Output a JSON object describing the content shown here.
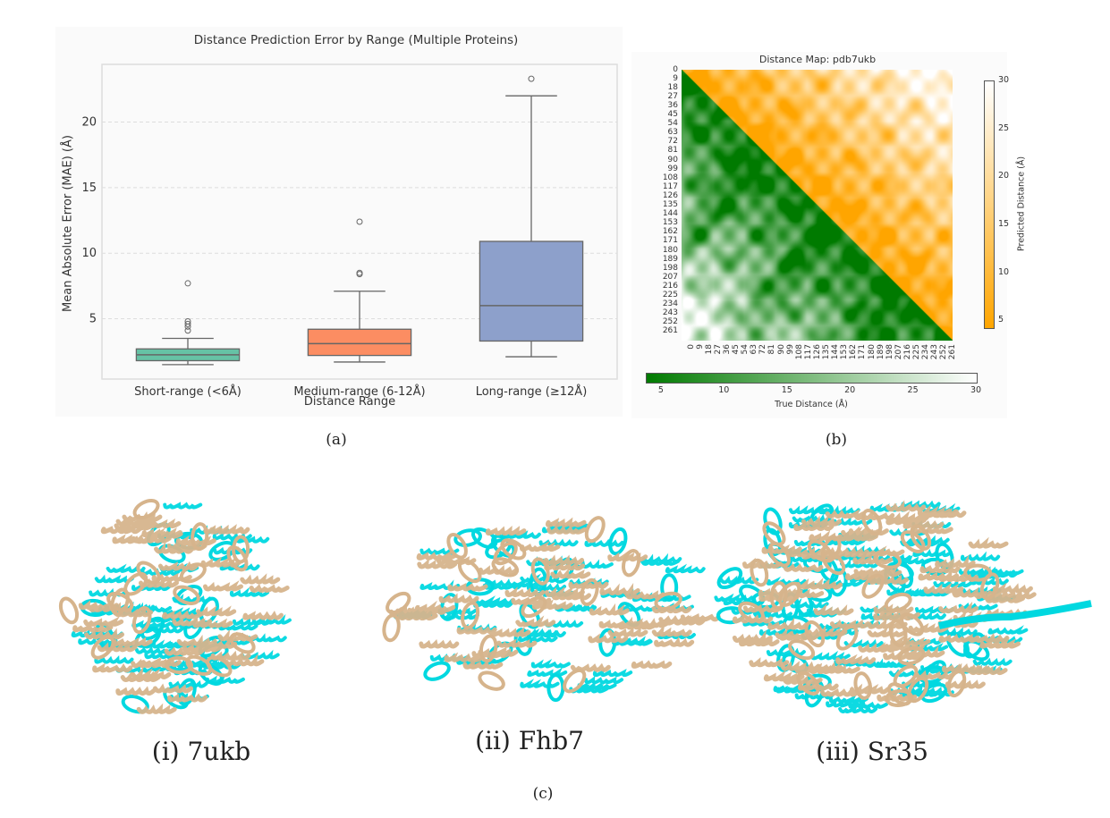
{
  "figure": {
    "panel_a_label": "(a)",
    "panel_b_label": "(b)",
    "panel_c_label": "(c)",
    "structures": [
      {
        "caption": "(i) 7ukb"
      },
      {
        "caption": "(ii) Fhb7"
      },
      {
        "caption": "(iii) Sr35"
      }
    ],
    "structure_colors": {
      "predicted": "#00d8e0",
      "reference": "#d6b48c"
    }
  },
  "chart_data": [
    {
      "type": "box",
      "title": "Distance Prediction Error by Range (Multiple Proteins)",
      "xlabel": "Distance Range",
      "ylabel": "Mean Absolute Error (MAE) (Å)",
      "ylim": [
        0.4,
        24.4
      ],
      "yticks": [
        5,
        10,
        15,
        20
      ],
      "grid": "horizontal dashed",
      "categories": [
        "Short-range (<6Å)",
        "Medium-range (6-12Å)",
        "Long-range (≥12Å)"
      ],
      "colors": [
        "#66c2a5",
        "#fc8d62",
        "#8da0cb"
      ],
      "boxes": [
        {
          "whisker_low": 1.5,
          "q1": 1.8,
          "median": 2.25,
          "q3": 2.7,
          "whisker_high": 3.5,
          "outliers": [
            4.1,
            4.4,
            4.6,
            4.8,
            7.7
          ]
        },
        {
          "whisker_low": 1.7,
          "q1": 2.2,
          "median": 3.1,
          "q3": 4.2,
          "whisker_high": 7.1,
          "outliers": [
            8.4,
            8.5,
            12.4
          ]
        },
        {
          "whisker_low": 2.1,
          "q1": 3.3,
          "median": 6.0,
          "q3": 10.9,
          "whisker_high": 22.0,
          "outliers": [
            23.3
          ]
        }
      ]
    },
    {
      "type": "heatmap",
      "title": "Distance Map: pdb7ukb",
      "ticks": [
        "0",
        "9",
        "18",
        "27",
        "36",
        "45",
        "54",
        "63",
        "72",
        "81",
        "90",
        "99",
        "108",
        "117",
        "126",
        "135",
        "144",
        "153",
        "162",
        "171",
        "180",
        "189",
        "198",
        "207",
        "216",
        "225",
        "234",
        "243",
        "252",
        "261"
      ],
      "colorbar_predicted": {
        "label": "Predicted Distance (Å)",
        "ticks": [
          5,
          10,
          15,
          20,
          25,
          30
        ],
        "range": [
          4.3,
          30
        ],
        "colors": [
          "#ffa500",
          "#ffffff"
        ]
      },
      "colorbar_true": {
        "label": "True Distance (Å)",
        "ticks": [
          5,
          10,
          15,
          20,
          25,
          30
        ],
        "range": [
          3.8,
          30
        ],
        "colors": [
          "#007a00",
          "#ffffff"
        ]
      }
    }
  ]
}
